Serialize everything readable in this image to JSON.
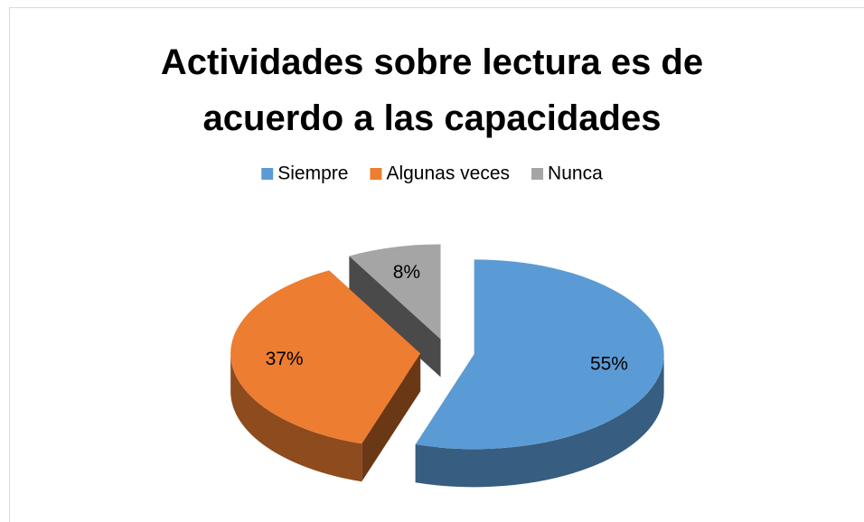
{
  "chart_data": {
    "type": "pie3d",
    "title": "Actividades sobre lectura es de acuerdo a las capacidades",
    "categories": [
      "Siempre",
      "Algunas veces",
      "Nunca"
    ],
    "values": [
      55,
      37,
      8
    ],
    "value_labels": [
      "55%",
      "37%",
      "8%"
    ],
    "colors": [
      "#5b9bd5",
      "#ed7d31",
      "#a5a5a5"
    ],
    "legend": "top"
  }
}
